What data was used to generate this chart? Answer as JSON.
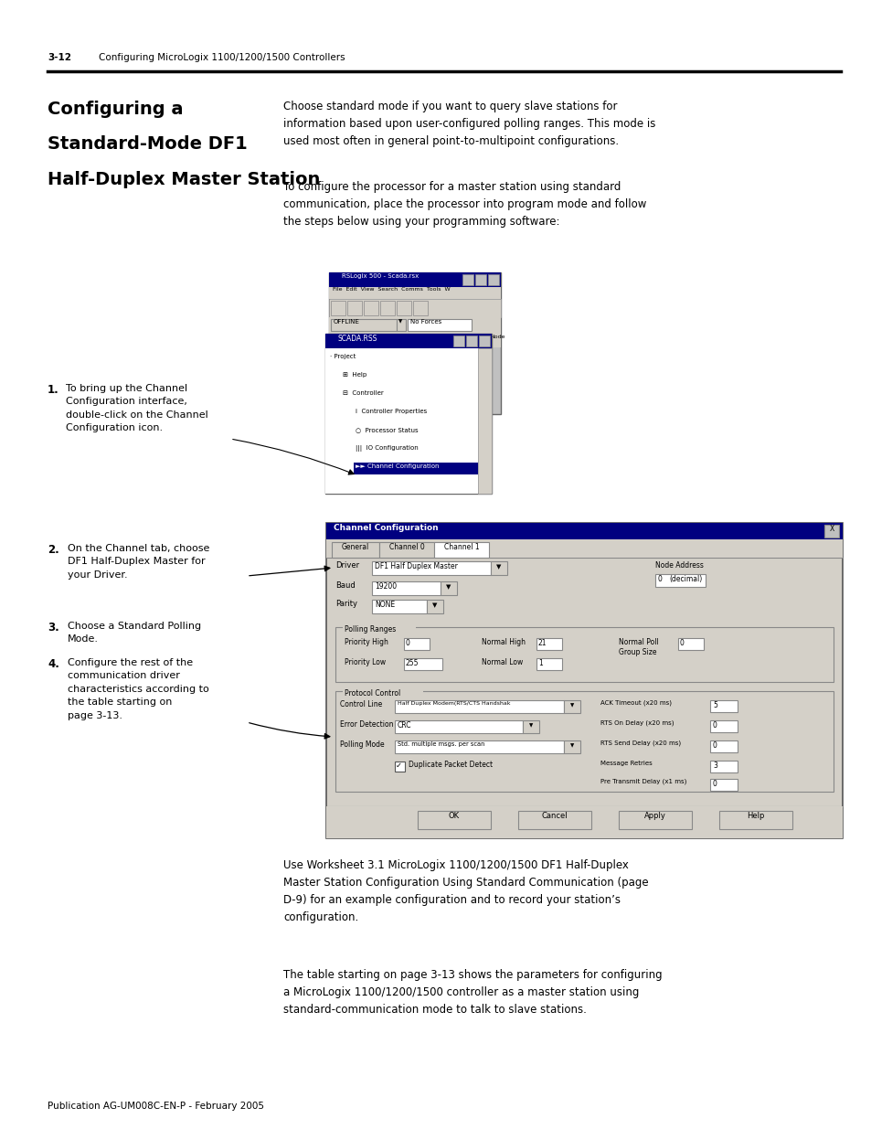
{
  "bg_color": "#ffffff",
  "header_num": "3-12",
  "header_text": "Configuring MicroLogix 1100/1200/1500 Controllers",
  "footer_text": "Publication AG-UM008C-EN-P - February 2005",
  "section_title_line1": "Configuring a",
  "section_title_line2": "Standard-Mode DF1",
  "section_title_line3": "Half-Duplex Master Station",
  "intro_para1": "Choose standard mode if you want to query slave stations for\ninformation based upon user-configured polling ranges. This mode is\nused most often in general point-to-multipoint configurations.",
  "intro_para2": "To configure the processor for a master station using standard\ncommunication, place the processor into program mode and follow\nthe steps below using your programming software:",
  "step1_label": "1.",
  "step1_text": "To bring up the Channel\nConfiguration interface,\ndouble-click on the Channel\nConfiguration icon.",
  "step2_label": "2.",
  "step2_text": "On the Channel tab, choose\nDF1 Half-Duplex Master for\nyour Driver.",
  "step3_label": "3.",
  "step3_text": "Choose a Standard Polling\nMode.",
  "step4_label": "4.",
  "step4_text": "Configure the rest of the\ncommunication driver\ncharacteristics according to\nthe table starting on\npage 3-13.",
  "closing_para1": "Use Worksheet 3.1 MicroLogix 1100/1200/1500 DF1 Half-Duplex\nMaster Station Configuration Using Standard Communication (page\nD-9) for an example configuration and to record your station’s\nconfiguration.",
  "closing_para2": "The table starting on page 3-13 shows the parameters for configuring\na MicroLogix 1100/1200/1500 controller as a master station using\nstandard-communication mode to talk to slave stations."
}
